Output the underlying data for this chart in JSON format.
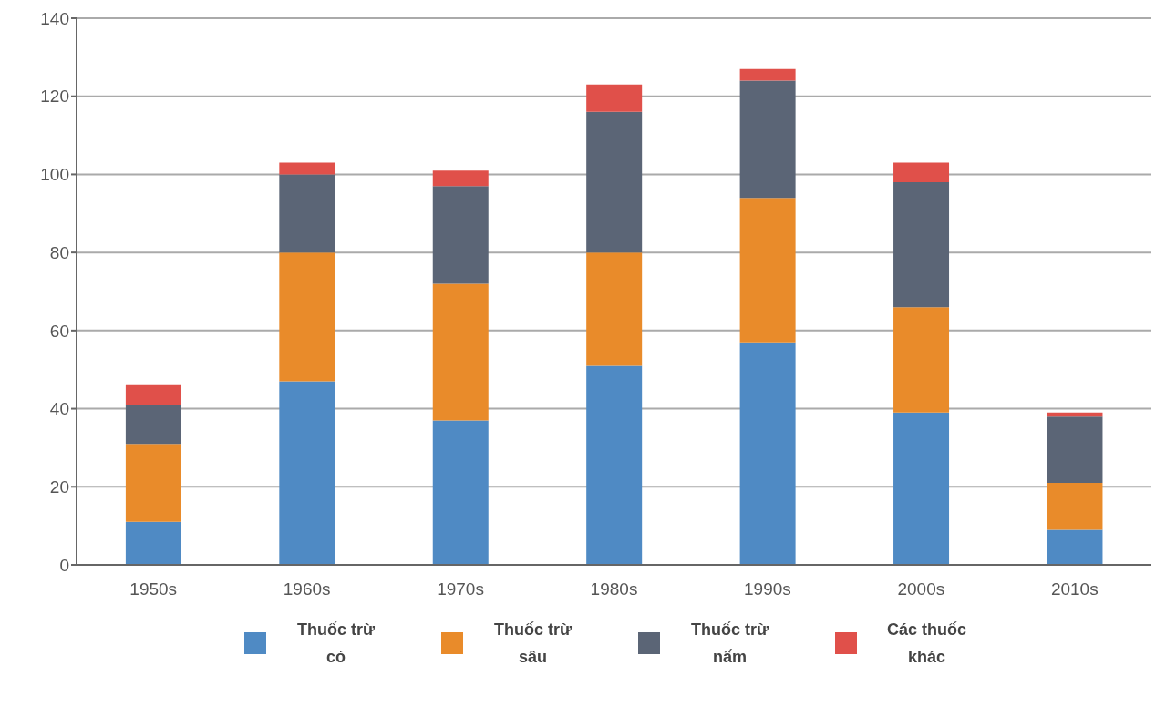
{
  "chart_data": {
    "type": "bar",
    "stacked": true,
    "categories": [
      "1950s",
      "1960s",
      "1970s",
      "1980s",
      "1990s",
      "2000s",
      "2010s"
    ],
    "series": [
      {
        "name": "Thuốc trừ cỏ",
        "color": "#4f8ac4",
        "values": [
          11,
          47,
          37,
          51,
          57,
          39,
          9
        ]
      },
      {
        "name": "Thuốc trừ sâu",
        "color": "#e98b2a",
        "values": [
          20,
          33,
          35,
          29,
          37,
          27,
          12
        ]
      },
      {
        "name": "Thuốc trừ nấm",
        "color": "#5b6576",
        "values": [
          10,
          20,
          25,
          36,
          30,
          32,
          17
        ]
      },
      {
        "name": "Các thuốc khác",
        "color": "#e0504a",
        "values": [
          5,
          3,
          4,
          7,
          3,
          5,
          1
        ]
      }
    ],
    "ylim": [
      0,
      140
    ],
    "yticks": [
      0,
      20,
      40,
      60,
      80,
      100,
      120,
      140
    ],
    "grid": "y",
    "legend": "bottom"
  }
}
